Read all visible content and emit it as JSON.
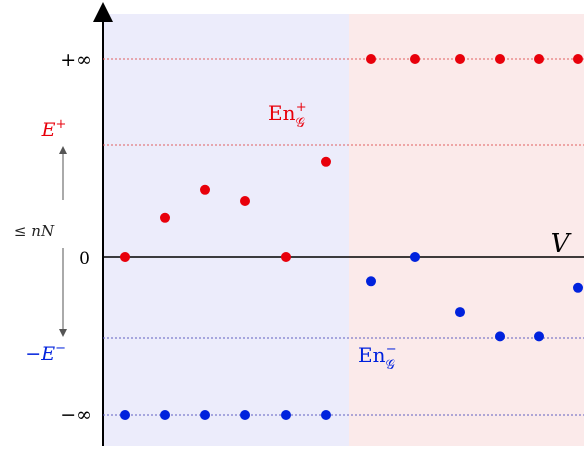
{
  "labels": {
    "plus_infinity": "+∞",
    "minus_infinity": "−∞",
    "zero": "0",
    "e_plus_base": "E",
    "e_plus_sup": "+",
    "minus_e_minus_base": "−E",
    "minus_e_minus_sup": "−",
    "bound_le": "≤",
    "bound_nN": "nN",
    "v_label": "V",
    "en_plus_base": "En",
    "en_plus_sub": "𝒢",
    "en_plus_sup": "+",
    "en_minus_base": "En",
    "en_minus_sub": "𝒢",
    "en_minus_sup": "−"
  },
  "colors": {
    "left_region": "#ececfb",
    "right_region": "#fbeaea",
    "red_points": "#e8000b",
    "blue_points": "#0022dd",
    "axis": "#000000",
    "red_dotted": "#e06060",
    "blue_dotted": "#6060c0",
    "bound_arrow": "#555555"
  },
  "chart_data": {
    "type": "scatter",
    "y_levels": [
      "-∞",
      "-E⁻",
      "0",
      "E⁺",
      "+∞"
    ],
    "series": [
      {
        "name": "En𝒢⁺",
        "values": [
          0,
          0.35,
          0.6,
          0.5,
          0,
          0.85,
          "+∞",
          "+∞",
          "+∞",
          "+∞",
          "+∞",
          "+∞"
        ]
      },
      {
        "name": "En𝒢⁻",
        "values": [
          "-∞",
          "-∞",
          "-∞",
          "-∞",
          "-∞",
          "-∞",
          -0.3,
          0,
          -0.68,
          -0.98,
          -0.98,
          -0.38
        ]
      }
    ]
  }
}
